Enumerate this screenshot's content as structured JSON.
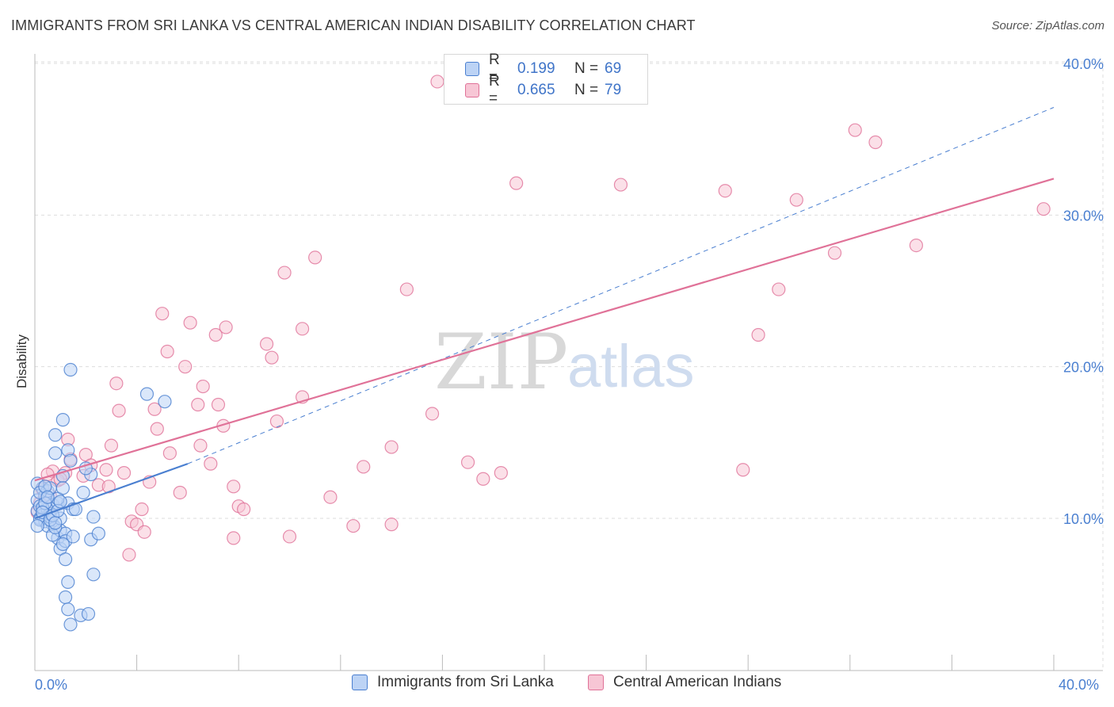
{
  "title": "IMMIGRANTS FROM SRI LANKA VS CENTRAL AMERICAN INDIAN DISABILITY CORRELATION CHART",
  "source": "Source: ZipAtlas.com",
  "watermark": {
    "zip": "ZIP",
    "atlas": "atlas"
  },
  "colors": {
    "blue": "#4a7fd0",
    "blue_fill": "#bcd3f5",
    "pink": "#e07298",
    "pink_fill": "#f7c6d5",
    "grid": "#dddddd"
  },
  "legend": {
    "rows": [
      {
        "r_label": "R =",
        "r_value": "0.199",
        "n_label": "N =",
        "n_value": "69"
      },
      {
        "r_label": "R =",
        "r_value": "0.665",
        "n_label": "N =",
        "n_value": "79"
      }
    ]
  },
  "bottom_legend": [
    "Immigrants from Sri Lanka",
    "Central American Indians"
  ],
  "chart_data": {
    "type": "scatter",
    "title": "IMMIGRANTS FROM SRI LANKA VS CENTRAL AMERICAN INDIAN DISABILITY CORRELATION CHART",
    "xlabel": "",
    "ylabel": "Disability",
    "xlim": [
      0,
      40
    ],
    "ylim": [
      0,
      42
    ],
    "x_tick_labels": [
      "0.0%",
      "40.0%"
    ],
    "y_ticks": [
      10,
      20,
      30,
      40
    ],
    "y_tick_labels": [
      "10.0%",
      "20.0%",
      "30.0%",
      "40.0%"
    ],
    "grid": true,
    "series": [
      {
        "name": "Immigrants from Sri Lanka",
        "color": "#4a7fd0",
        "points": [
          [
            0.1,
            10.5
          ],
          [
            0.1,
            11.2
          ],
          [
            0.2,
            10.0
          ],
          [
            0.2,
            10.8
          ],
          [
            0.3,
            12.0
          ],
          [
            0.3,
            10.2
          ],
          [
            0.4,
            11.5
          ],
          [
            0.4,
            9.8
          ],
          [
            0.5,
            10.6
          ],
          [
            0.5,
            11.8
          ],
          [
            0.6,
            12.0
          ],
          [
            0.6,
            10.3
          ],
          [
            0.7,
            9.6
          ],
          [
            0.7,
            10.9
          ],
          [
            0.8,
            15.5
          ],
          [
            0.8,
            14.3
          ],
          [
            0.9,
            11.0
          ],
          [
            0.9,
            8.7
          ],
          [
            1.0,
            9.2
          ],
          [
            1.0,
            8.0
          ],
          [
            1.1,
            16.5
          ],
          [
            1.1,
            12.8
          ],
          [
            1.2,
            9.0
          ],
          [
            1.2,
            8.5
          ],
          [
            1.3,
            14.5
          ],
          [
            1.3,
            11.0
          ],
          [
            1.4,
            13.8
          ],
          [
            1.4,
            19.8
          ],
          [
            1.5,
            10.6
          ],
          [
            1.5,
            8.8
          ],
          [
            0.2,
            9.9
          ],
          [
            0.3,
            10.7
          ],
          [
            0.4,
            11.0
          ],
          [
            0.5,
            9.5
          ],
          [
            0.6,
            10.1
          ],
          [
            0.7,
            8.9
          ],
          [
            0.8,
            9.4
          ],
          [
            0.9,
            11.3
          ],
          [
            1.0,
            10.0
          ],
          [
            1.1,
            8.3
          ],
          [
            1.2,
            7.3
          ],
          [
            1.3,
            5.8
          ],
          [
            1.2,
            4.8
          ],
          [
            1.3,
            4.0
          ],
          [
            1.4,
            3.0
          ],
          [
            1.8,
            3.6
          ],
          [
            2.1,
            3.7
          ],
          [
            2.3,
            6.3
          ],
          [
            2.2,
            8.6
          ],
          [
            2.5,
            9.0
          ],
          [
            1.9,
            11.7
          ],
          [
            2.2,
            12.9
          ],
          [
            2.0,
            13.3
          ],
          [
            2.3,
            10.1
          ],
          [
            4.4,
            18.2
          ],
          [
            5.1,
            17.7
          ],
          [
            0.1,
            12.3
          ],
          [
            0.2,
            11.7
          ],
          [
            0.3,
            10.4
          ],
          [
            0.4,
            12.1
          ],
          [
            0.5,
            11.4
          ],
          [
            0.6,
            9.9
          ],
          [
            0.7,
            10.2
          ],
          [
            0.8,
            9.7
          ],
          [
            0.9,
            10.5
          ],
          [
            1.0,
            11.1
          ],
          [
            1.1,
            12.0
          ],
          [
            1.6,
            10.6
          ],
          [
            0.1,
            9.5
          ]
        ]
      },
      {
        "name": "Central American Indians",
        "color": "#e07298",
        "points": [
          [
            15.8,
            38.8
          ],
          [
            32.2,
            35.6
          ],
          [
            33.0,
            34.8
          ],
          [
            18.9,
            32.1
          ],
          [
            23.0,
            32.0
          ],
          [
            27.1,
            31.6
          ],
          [
            29.9,
            31.0
          ],
          [
            39.6,
            30.4
          ],
          [
            34.6,
            28.0
          ],
          [
            31.4,
            27.5
          ],
          [
            11.0,
            27.2
          ],
          [
            9.8,
            26.2
          ],
          [
            14.6,
            25.1
          ],
          [
            29.2,
            25.1
          ],
          [
            5.0,
            23.5
          ],
          [
            6.1,
            22.9
          ],
          [
            7.5,
            22.6
          ],
          [
            7.1,
            22.1
          ],
          [
            10.5,
            22.5
          ],
          [
            28.4,
            22.1
          ],
          [
            9.1,
            21.5
          ],
          [
            9.3,
            20.6
          ],
          [
            5.2,
            21.0
          ],
          [
            5.9,
            20.0
          ],
          [
            3.2,
            18.9
          ],
          [
            6.6,
            18.7
          ],
          [
            10.5,
            18.0
          ],
          [
            4.7,
            17.2
          ],
          [
            6.4,
            17.5
          ],
          [
            7.2,
            17.5
          ],
          [
            3.3,
            17.1
          ],
          [
            15.6,
            16.9
          ],
          [
            9.5,
            16.4
          ],
          [
            7.4,
            16.1
          ],
          [
            4.8,
            15.9
          ],
          [
            1.3,
            15.2
          ],
          [
            3.0,
            14.8
          ],
          [
            6.5,
            14.8
          ],
          [
            14.0,
            14.7
          ],
          [
            5.3,
            14.3
          ],
          [
            2.0,
            14.2
          ],
          [
            1.4,
            13.9
          ],
          [
            17.0,
            13.7
          ],
          [
            6.9,
            13.6
          ],
          [
            12.9,
            13.4
          ],
          [
            27.8,
            13.2
          ],
          [
            17.6,
            12.6
          ],
          [
            18.3,
            13.0
          ],
          [
            3.5,
            13.0
          ],
          [
            2.8,
            13.2
          ],
          [
            1.2,
            13.0
          ],
          [
            0.7,
            13.1
          ],
          [
            1.9,
            12.8
          ],
          [
            0.9,
            12.5
          ],
          [
            4.5,
            12.4
          ],
          [
            2.5,
            12.2
          ],
          [
            2.9,
            12.1
          ],
          [
            0.4,
            12.1
          ],
          [
            0.3,
            11.9
          ],
          [
            0.6,
            11.5
          ],
          [
            7.8,
            12.1
          ],
          [
            5.7,
            11.7
          ],
          [
            11.6,
            11.4
          ],
          [
            8.0,
            10.8
          ],
          [
            8.2,
            10.6
          ],
          [
            4.2,
            10.6
          ],
          [
            0.2,
            11.0
          ],
          [
            0.1,
            10.4
          ],
          [
            3.8,
            9.8
          ],
          [
            4.0,
            9.6
          ],
          [
            12.5,
            9.5
          ],
          [
            14.0,
            9.6
          ],
          [
            4.3,
            9.1
          ],
          [
            7.8,
            8.7
          ],
          [
            10.0,
            8.8
          ],
          [
            3.7,
            7.6
          ],
          [
            1.0,
            12.6
          ],
          [
            2.2,
            13.5
          ],
          [
            0.5,
            12.9
          ]
        ]
      }
    ],
    "trend_lines": [
      {
        "series": "Immigrants from Sri Lanka",
        "solid": [
          [
            0.0,
            10.0
          ],
          [
            6.0,
            13.6
          ]
        ],
        "dashed_to": [
          40.0,
          37.1
        ]
      },
      {
        "series": "Central American Indians",
        "solid": [
          [
            0.0,
            12.5
          ],
          [
            40.0,
            32.4
          ]
        ]
      }
    ]
  }
}
